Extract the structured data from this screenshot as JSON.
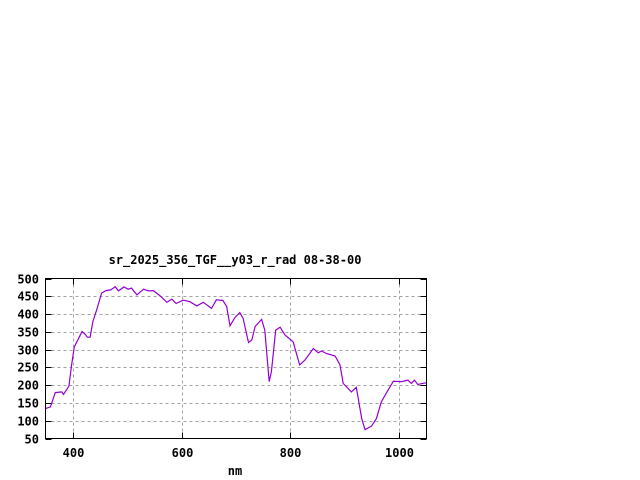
{
  "chart_data": {
    "type": "line",
    "title": "sr_2025_356_TGF__y03_r_rad 08-38-00",
    "xlabel": "nm",
    "ylabel": "",
    "xlim": [
      350,
      1050
    ],
    "ylim": [
      50,
      500
    ],
    "xticks": [
      400,
      600,
      800,
      1000
    ],
    "yticks": [
      50,
      100,
      150,
      200,
      250,
      300,
      350,
      400,
      450,
      500
    ],
    "grid": true,
    "line_color": "#9400d3",
    "series": [
      {
        "x": [
          350,
          359,
          368,
          380,
          383,
          393,
          398,
          403,
          411,
          417,
          423,
          427,
          432,
          437,
          444,
          453,
          461,
          470,
          478,
          484,
          494,
          502,
          508,
          518,
          530,
          539,
          548,
          560,
          573,
          582,
          590,
          603,
          615,
          628,
          640,
          655,
          664,
          676,
          683,
          689,
          698,
          707,
          713,
          723,
          729,
          735,
          747,
          753,
          761,
          765,
          773,
          781,
          790,
          805,
          817,
          827,
          842,
          851,
          857,
          866,
          882,
          891,
          897,
          912,
          921,
          931,
          937,
          949,
          958,
          967,
          976,
          989,
          1004,
          1016,
          1022,
          1028,
          1034,
          1050
        ],
        "y": [
          134,
          139,
          179,
          181,
          174,
          197,
          257,
          308,
          332,
          351,
          343,
          335,
          335,
          379,
          412,
          459,
          466,
          468,
          477,
          465,
          476,
          470,
          473,
          454,
          470,
          465,
          466,
          452,
          433,
          442,
          430,
          439,
          435,
          423,
          433,
          416,
          440,
          438,
          421,
          367,
          390,
          404,
          388,
          320,
          327,
          365,
          385,
          355,
          210,
          238,
          355,
          363,
          341,
          322,
          257,
          271,
          303,
          291,
          296,
          289,
          282,
          257,
          205,
          181,
          194,
          106,
          75,
          85,
          106,
          153,
          177,
          211,
          210,
          214,
          205,
          214,
          202,
          207
        ]
      }
    ]
  }
}
